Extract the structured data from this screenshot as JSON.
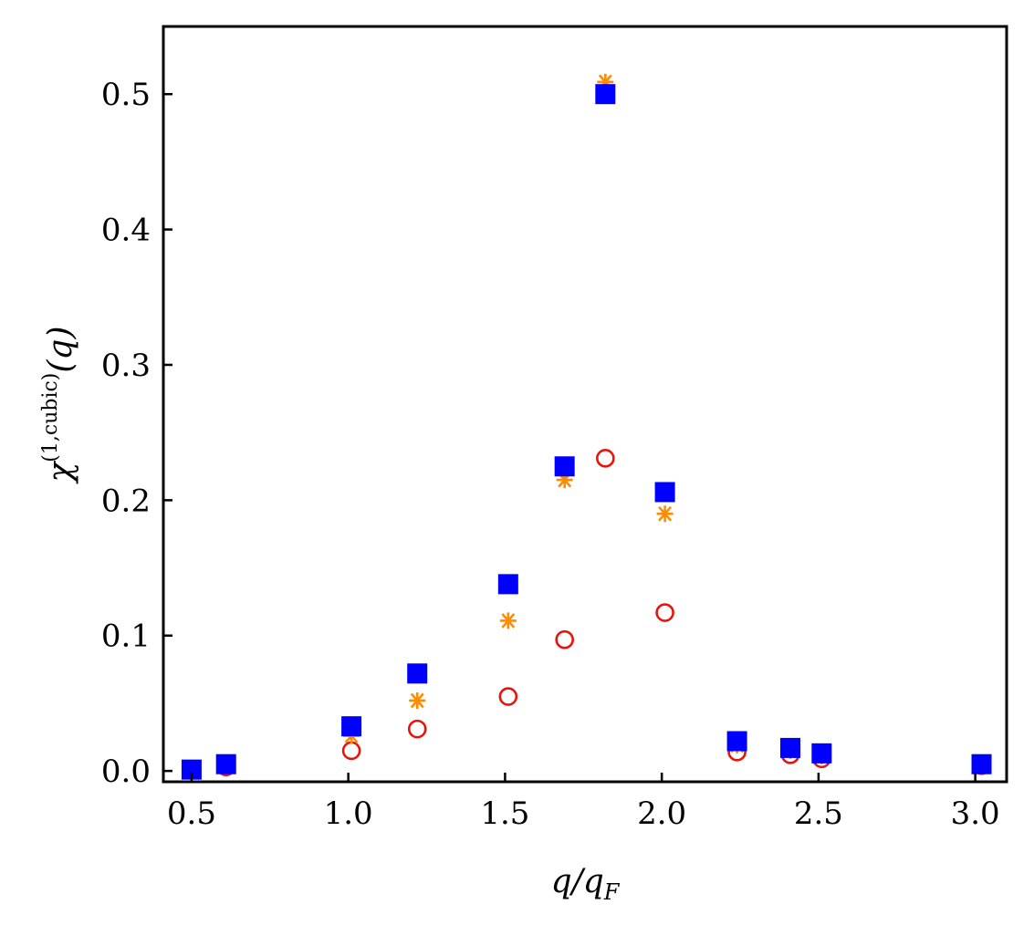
{
  "chart_data": {
    "type": "scatter",
    "title": "",
    "xlabel": {
      "base": "q/q",
      "sub": "F"
    },
    "ylabel": {
      "main": "χ",
      "sup": "(1,cubic)",
      "arg": "(q)"
    },
    "xlim": [
      0.41,
      3.1
    ],
    "ylim": [
      -0.008,
      0.55
    ],
    "xticks": [
      0.5,
      1.0,
      1.5,
      2.0,
      2.5,
      3.0
    ],
    "xtick_labels": [
      "0.5",
      "1.0",
      "1.5",
      "2.0",
      "2.5",
      "3.0"
    ],
    "yticks": [
      0.0,
      0.1,
      0.2,
      0.3,
      0.4,
      0.5
    ],
    "ytick_labels": [
      "0.0",
      "0.1",
      "0.2",
      "0.3",
      "0.4",
      "0.5"
    ],
    "grid": false,
    "legend": "none",
    "series": [
      {
        "marker": "open-circle",
        "color": "#e8140c",
        "x": [
          0.5,
          0.61,
          1.01,
          1.22,
          1.51,
          1.69,
          1.82,
          2.01,
          2.24,
          2.41,
          2.51,
          3.02
        ],
        "y": [
          0.001,
          0.003,
          0.015,
          0.031,
          0.055,
          0.097,
          0.231,
          0.117,
          0.014,
          0.012,
          0.009,
          0.004
        ]
      },
      {
        "marker": "asterisk",
        "color": "#ff8c00",
        "x": [
          0.5,
          0.61,
          1.01,
          1.22,
          1.51,
          1.69,
          1.82,
          2.01,
          2.24,
          2.41,
          2.51,
          3.02
        ],
        "y": [
          0.001,
          0.004,
          0.026,
          0.052,
          0.111,
          0.215,
          0.509,
          0.19,
          0.019,
          0.015,
          0.011,
          0.004
        ]
      },
      {
        "marker": "filled-square",
        "color": "#0000ff",
        "x": [
          0.5,
          0.61,
          1.01,
          1.22,
          1.51,
          1.69,
          1.82,
          2.01,
          2.24,
          2.41,
          2.51,
          3.02
        ],
        "y": [
          0.001,
          0.005,
          0.033,
          0.072,
          0.138,
          0.225,
          0.5,
          0.206,
          0.022,
          0.017,
          0.013,
          0.005
        ]
      }
    ]
  }
}
